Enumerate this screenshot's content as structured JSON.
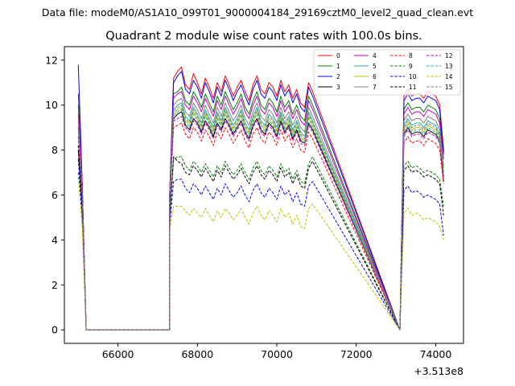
{
  "suptitle": "Data file: modeM0/AS1A10_099T01_9000004184_29169cztM0_level2_quad_clean.evt",
  "chart_data": {
    "type": "line",
    "title": "Quadrant 2 module wise count rates with 100.0s bins.",
    "xlabel": "",
    "ylabel": "",
    "offset_text": "+3.513e8",
    "xlim": [
      64650,
      74700
    ],
    "ylim": [
      -0.6,
      12.6
    ],
    "xticks": [
      66000,
      68000,
      70000,
      72000,
      74000
    ],
    "xtick_labels": [
      "66000",
      "68000",
      "70000",
      "72000",
      "74000"
    ],
    "yticks": [
      0,
      2,
      4,
      6,
      8,
      10,
      12
    ],
    "ytick_labels": [
      "0",
      "2",
      "4",
      "6",
      "8",
      "10",
      "12"
    ],
    "grid": false,
    "legend_position": "top-right",
    "segments": [
      {
        "x_start": 65000,
        "n": 3
      },
      {
        "x_start": 67300,
        "n": 37
      },
      {
        "x_start": 73200,
        "n": 11
      }
    ],
    "zero_gaps": [
      [
        65200,
        67300
      ],
      [
        71000,
        73100
      ]
    ],
    "series": [
      {
        "name": "0",
        "color": "#ff0000",
        "dash": "solid",
        "values": [
          9.6,
          6.5,
          0.0,
          6.0,
          11.2,
          11.5,
          11.7,
          10.9,
          10.7,
          11.4,
          11.0,
          10.5,
          11.2,
          10.8,
          10.3,
          11.0,
          10.6,
          11.3,
          10.9,
          10.4,
          10.8,
          11.1,
          10.6,
          10.2,
          10.9,
          11.3,
          10.7,
          10.5,
          11.0,
          10.8,
          10.4,
          11.1,
          10.6,
          10.9,
          10.3,
          10.7,
          10.1,
          9.9,
          11.0,
          10.6,
          10.4,
          10.7,
          10.4,
          10.5,
          10.5,
          10.3,
          10.6,
          10.5,
          10.4,
          10.0,
          8.0
        ]
      },
      {
        "name": "1",
        "color": "#008000",
        "dash": "solid",
        "values": [
          10.5,
          6.5,
          0.0,
          6.0,
          10.5,
          10.6,
          10.8,
          10.2,
          10.0,
          10.6,
          10.3,
          9.9,
          10.5,
          10.1,
          9.7,
          10.4,
          10.0,
          10.6,
          10.2,
          9.8,
          10.1,
          10.5,
          9.9,
          9.6,
          10.2,
          10.6,
          10.0,
          9.8,
          10.3,
          10.1,
          9.7,
          10.4,
          9.9,
          10.2,
          9.6,
          10.0,
          9.5,
          9.3,
          10.4,
          10.0,
          9.8,
          10.1,
          9.8,
          9.9,
          9.9,
          9.7,
          10.0,
          9.9,
          9.8,
          9.4,
          7.8
        ]
      },
      {
        "name": "2",
        "color": "#0000ff",
        "dash": "solid",
        "values": [
          11.8,
          6.5,
          0.0,
          6.0,
          11.0,
          11.3,
          11.5,
          10.7,
          10.5,
          11.1,
          10.8,
          10.3,
          11.0,
          10.6,
          10.1,
          10.8,
          10.4,
          11.1,
          10.7,
          10.2,
          10.6,
          10.9,
          10.4,
          10.0,
          10.7,
          11.1,
          10.5,
          10.3,
          10.8,
          10.6,
          10.2,
          10.9,
          10.4,
          10.7,
          10.1,
          10.5,
          9.9,
          9.7,
          10.8,
          10.4,
          10.2,
          10.5,
          10.2,
          10.3,
          10.3,
          10.1,
          10.4,
          10.3,
          10.2,
          9.8,
          7.9
        ]
      },
      {
        "name": "3",
        "color": "#000000",
        "dash": "solid",
        "values": [
          8.0,
          5.5,
          0.0,
          5.5,
          9.4,
          9.6,
          9.7,
          9.1,
          8.9,
          9.4,
          9.2,
          8.8,
          9.3,
          9.0,
          8.6,
          9.2,
          8.9,
          9.4,
          9.1,
          8.7,
          9.0,
          9.3,
          8.8,
          8.5,
          9.1,
          9.4,
          8.9,
          8.7,
          9.2,
          9.0,
          8.6,
          9.3,
          8.8,
          9.1,
          8.5,
          8.9,
          8.4,
          8.3,
          9.2,
          8.9,
          8.7,
          9.0,
          8.7,
          8.8,
          8.8,
          8.6,
          8.9,
          8.8,
          8.7,
          8.4,
          6.6
        ]
      },
      {
        "name": "4",
        "color": "#bf00bf",
        "dash": "solid",
        "values": [
          10.0,
          6.5,
          0.0,
          6.0,
          10.3,
          10.5,
          10.6,
          10.0,
          9.8,
          10.4,
          10.1,
          9.7,
          10.3,
          9.9,
          9.5,
          10.2,
          9.8,
          10.4,
          10.0,
          9.6,
          9.9,
          10.3,
          9.7,
          9.4,
          10.0,
          10.4,
          9.8,
          9.6,
          10.1,
          9.9,
          9.5,
          10.2,
          9.7,
          10.0,
          9.4,
          9.8,
          9.3,
          9.1,
          10.2,
          9.8,
          9.6,
          9.9,
          9.6,
          9.7,
          9.7,
          9.5,
          9.8,
          9.7,
          9.6,
          9.2,
          7.6
        ]
      },
      {
        "name": "5",
        "color": "#20b2aa",
        "dash": "solid",
        "values": [
          9.0,
          6.0,
          0.0,
          5.8,
          9.8,
          10.0,
          10.1,
          9.5,
          9.3,
          9.9,
          9.6,
          9.2,
          9.8,
          9.4,
          9.0,
          9.7,
          9.3,
          9.9,
          9.5,
          9.1,
          9.4,
          9.8,
          9.2,
          8.9,
          9.5,
          9.9,
          9.3,
          9.1,
          9.6,
          9.4,
          9.0,
          9.7,
          9.2,
          9.5,
          8.9,
          9.3,
          8.8,
          8.6,
          9.7,
          9.3,
          9.1,
          9.4,
          9.1,
          9.2,
          9.2,
          9.0,
          9.3,
          9.2,
          9.1,
          8.7,
          7.2
        ]
      },
      {
        "name": "6",
        "color": "#bfbf00",
        "dash": "solid",
        "values": [
          9.2,
          6.0,
          0.0,
          5.8,
          9.6,
          9.8,
          9.9,
          9.3,
          9.1,
          9.7,
          9.4,
          9.0,
          9.6,
          9.2,
          8.8,
          9.5,
          9.1,
          9.7,
          9.3,
          8.9,
          9.2,
          9.6,
          9.0,
          8.7,
          9.3,
          9.7,
          9.1,
          8.9,
          9.4,
          9.2,
          8.8,
          9.5,
          9.0,
          9.3,
          8.7,
          9.1,
          8.6,
          8.4,
          9.5,
          9.1,
          8.9,
          9.2,
          8.9,
          9.0,
          9.0,
          8.8,
          9.1,
          9.0,
          8.9,
          8.5,
          7.0
        ]
      },
      {
        "name": "7",
        "color": "#808080",
        "dash": "solid",
        "values": [
          9.4,
          6.0,
          0.0,
          5.8,
          10.0,
          10.2,
          10.3,
          9.7,
          9.5,
          10.1,
          9.8,
          9.4,
          10.0,
          9.6,
          9.2,
          9.9,
          9.5,
          10.1,
          9.7,
          9.3,
          9.6,
          10.0,
          9.4,
          9.1,
          9.7,
          10.1,
          9.5,
          9.3,
          9.8,
          9.6,
          9.2,
          9.9,
          9.4,
          9.7,
          9.1,
          9.5,
          9.0,
          8.8,
          9.9,
          9.5,
          9.3,
          9.6,
          9.3,
          9.4,
          9.4,
          9.2,
          9.5,
          9.4,
          9.3,
          8.9,
          7.3
        ]
      },
      {
        "name": "8",
        "color": "#ff0000",
        "dash": "dashed",
        "values": [
          8.6,
          5.8,
          0.0,
          5.6,
          9.0,
          9.1,
          9.2,
          8.7,
          8.5,
          9.0,
          8.8,
          8.4,
          8.9,
          8.6,
          8.2,
          8.8,
          8.5,
          9.0,
          8.7,
          8.3,
          8.6,
          8.9,
          8.4,
          8.1,
          8.7,
          9.0,
          8.5,
          8.3,
          8.8,
          8.6,
          8.2,
          8.9,
          8.4,
          8.7,
          8.1,
          8.5,
          8.0,
          7.9,
          8.8,
          8.5,
          8.3,
          8.6,
          8.3,
          8.4,
          8.4,
          8.2,
          8.5,
          8.4,
          8.3,
          8.0,
          6.5
        ]
      },
      {
        "name": "9",
        "color": "#008000",
        "dash": "dashed",
        "values": [
          7.0,
          5.0,
          0.0,
          4.8,
          7.6,
          7.7,
          7.7,
          7.3,
          7.1,
          7.5,
          7.3,
          7.0,
          7.4,
          7.1,
          6.8,
          7.3,
          7.0,
          7.5,
          7.2,
          6.9,
          7.1,
          7.4,
          7.0,
          6.7,
          7.2,
          7.5,
          7.1,
          6.9,
          7.3,
          7.1,
          6.8,
          7.4,
          7.0,
          7.2,
          6.7,
          7.1,
          6.6,
          6.5,
          7.4,
          7.7,
          7.3,
          7.5,
          7.2,
          7.3,
          7.2,
          7.0,
          7.1,
          7.0,
          6.9,
          6.7,
          5.5
        ]
      },
      {
        "name": "10",
        "color": "#0000ff",
        "dash": "dashed",
        "values": [
          7.6,
          5.0,
          0.0,
          4.6,
          6.6,
          6.7,
          6.7,
          6.3,
          6.1,
          6.5,
          6.3,
          6.0,
          6.4,
          6.1,
          5.8,
          6.3,
          6.0,
          6.5,
          6.2,
          5.9,
          6.1,
          6.4,
          6.0,
          5.7,
          6.2,
          6.5,
          6.1,
          5.9,
          6.3,
          6.1,
          5.8,
          6.4,
          6.0,
          6.2,
          5.7,
          6.1,
          5.6,
          5.5,
          6.4,
          6.6,
          6.2,
          6.4,
          6.1,
          6.2,
          6.1,
          5.9,
          6.0,
          5.9,
          5.8,
          5.6,
          4.2
        ]
      },
      {
        "name": "11",
        "color": "#000000",
        "dash": "dashed",
        "values": [
          8.2,
          5.4,
          0.0,
          5.0,
          7.7,
          7.5,
          7.4,
          7.0,
          6.9,
          7.3,
          7.1,
          6.8,
          7.2,
          6.9,
          6.6,
          7.1,
          6.8,
          7.3,
          7.0,
          6.7,
          6.9,
          7.2,
          6.8,
          6.5,
          7.0,
          7.3,
          6.9,
          6.7,
          7.1,
          6.9,
          6.6,
          7.2,
          6.8,
          7.0,
          6.5,
          6.9,
          6.4,
          6.3,
          7.2,
          7.5,
          7.1,
          7.3,
          7.0,
          7.1,
          7.0,
          6.8,
          6.9,
          6.8,
          6.7,
          6.5,
          5.1
        ]
      },
      {
        "name": "12",
        "color": "#bf00bf",
        "dash": "dashed",
        "values": [
          9.0,
          6.0,
          0.0,
          5.8,
          9.3,
          9.4,
          9.5,
          9.0,
          8.8,
          9.3,
          9.1,
          8.7,
          9.2,
          8.9,
          8.5,
          9.1,
          8.8,
          9.3,
          9.0,
          8.6,
          8.9,
          9.2,
          8.7,
          8.4,
          9.0,
          9.3,
          8.8,
          8.6,
          9.1,
          8.9,
          8.5,
          9.2,
          8.7,
          9.0,
          8.4,
          8.8,
          8.3,
          8.2,
          9.1,
          8.8,
          8.6,
          8.9,
          8.6,
          8.7,
          8.7,
          8.5,
          8.8,
          8.7,
          8.6,
          8.3,
          6.8
        ]
      },
      {
        "name": "13",
        "color": "#20b2aa",
        "dash": "dashed",
        "values": [
          9.3,
          6.0,
          0.0,
          5.8,
          9.5,
          9.7,
          9.8,
          9.2,
          9.0,
          9.6,
          9.3,
          8.9,
          9.5,
          9.1,
          8.7,
          9.4,
          9.0,
          9.6,
          9.2,
          8.8,
          9.1,
          9.5,
          8.9,
          8.6,
          9.2,
          9.6,
          9.0,
          8.8,
          9.3,
          9.1,
          8.7,
          9.4,
          8.9,
          9.2,
          8.6,
          9.0,
          8.5,
          8.3,
          9.4,
          9.0,
          8.8,
          9.1,
          8.8,
          8.9,
          8.9,
          8.7,
          9.0,
          8.9,
          8.8,
          8.4,
          7.0
        ]
      },
      {
        "name": "14",
        "color": "#bfbf00",
        "dash": "dashed",
        "values": [
          6.8,
          4.6,
          0.0,
          4.4,
          5.5,
          5.5,
          5.5,
          5.3,
          5.1,
          5.4,
          5.2,
          5.0,
          5.4,
          5.1,
          4.8,
          5.3,
          5.0,
          5.4,
          5.2,
          4.9,
          5.1,
          5.4,
          5.0,
          4.7,
          5.2,
          5.5,
          5.1,
          4.9,
          5.3,
          5.1,
          4.8,
          5.4,
          5.0,
          5.2,
          4.7,
          5.1,
          4.6,
          4.5,
          5.4,
          5.6,
          5.2,
          5.4,
          5.1,
          5.2,
          5.1,
          4.9,
          5.0,
          4.9,
          4.8,
          4.6,
          4.0
        ]
      },
      {
        "name": "15",
        "color": "#808080",
        "dash": "dashed",
        "values": [
          9.1,
          6.0,
          0.0,
          5.8,
          9.7,
          9.9,
          10.0,
          9.4,
          9.2,
          9.8,
          9.5,
          9.1,
          9.7,
          9.3,
          8.9,
          9.6,
          9.2,
          9.8,
          9.4,
          9.0,
          9.3,
          9.7,
          9.1,
          8.8,
          9.4,
          9.8,
          9.2,
          9.0,
          9.5,
          9.3,
          8.9,
          9.6,
          9.1,
          9.4,
          8.8,
          9.2,
          8.7,
          8.5,
          9.6,
          9.2,
          9.0,
          9.3,
          9.0,
          9.1,
          9.1,
          8.9,
          9.2,
          9.1,
          9.0,
          8.6,
          7.1
        ]
      }
    ]
  }
}
